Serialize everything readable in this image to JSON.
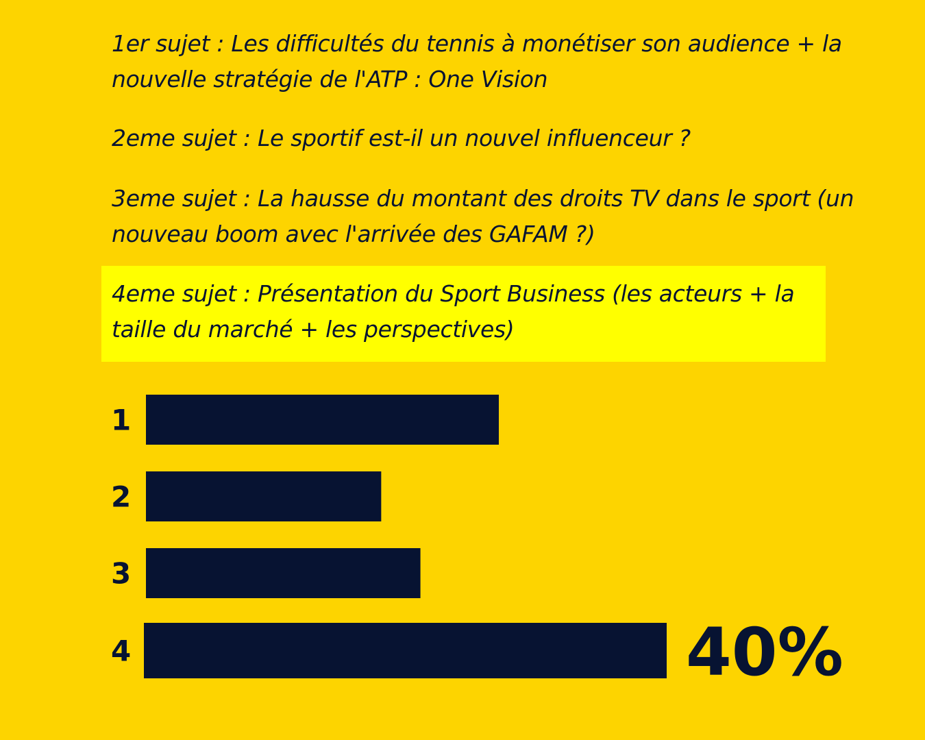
{
  "topics": [
    "1er sujet : Les difficultés du tennis à monétiser son audience + la nouvelle stratégie de l'ATP : One Vision",
    "2eme sujet : Le sportif est-il un nouvel influenceur ?",
    "3eme sujet : La hausse du montant des droits TV dans le sport (un nouveau boom avec l'arrivée des GAFAM ?)",
    "4eme sujet : Présentation du Sport Business (les acteurs + la taille du marché + les perspectives)"
  ],
  "colors": {
    "background": "#FDD400",
    "highlight": "#FFFF00",
    "bar": "#071332"
  },
  "chart_data": {
    "type": "bar",
    "orientation": "horizontal",
    "categories": [
      "1",
      "2",
      "3",
      "4"
    ],
    "values": [
      27,
      18,
      21,
      40
    ],
    "unit": "%",
    "highlighted_category": "4",
    "data_labels": [
      null,
      null,
      null,
      "40%"
    ],
    "xlim": [
      0,
      40
    ],
    "grid": false,
    "title": "",
    "xlabel": "",
    "ylabel": ""
  }
}
